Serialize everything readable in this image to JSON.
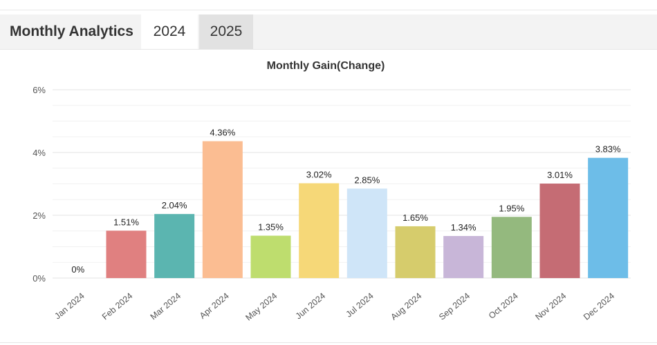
{
  "header": {
    "title": "Monthly Analytics",
    "tabs": [
      {
        "label": "2024",
        "active": true
      },
      {
        "label": "2025",
        "active": false
      }
    ]
  },
  "chart_data": {
    "type": "bar",
    "title": "Monthly Gain(Change)",
    "categories": [
      "Jan 2024",
      "Feb 2024",
      "Mar 2024",
      "Apr 2024",
      "May 2024",
      "Jun 2024",
      "Jul 2024",
      "Aug 2024",
      "Sep 2024",
      "Oct 2024",
      "Nov 2024",
      "Dec 2024"
    ],
    "values": [
      0,
      1.51,
      2.04,
      4.36,
      1.35,
      3.02,
      2.85,
      1.65,
      1.34,
      1.95,
      3.01,
      3.83
    ],
    "data_labels": [
      "0%",
      "1.51%",
      "2.04%",
      "4.36%",
      "1.35%",
      "3.02%",
      "2.85%",
      "1.65%",
      "1.34%",
      "1.95%",
      "3.01%",
      "3.83%"
    ],
    "colors": [
      "#e08080",
      "#e08080",
      "#5bb5b0",
      "#fbbd92",
      "#bedd6e",
      "#f6d878",
      "#cfe5f8",
      "#d6cc6c",
      "#c8b6d8",
      "#94b97e",
      "#c56c74",
      "#6dbde8"
    ],
    "y_ticks": [
      "0%",
      "2%",
      "4%",
      "6%"
    ],
    "ylim": [
      0,
      6
    ],
    "xlabel": "",
    "ylabel": "",
    "grid": true,
    "legend": "none"
  }
}
